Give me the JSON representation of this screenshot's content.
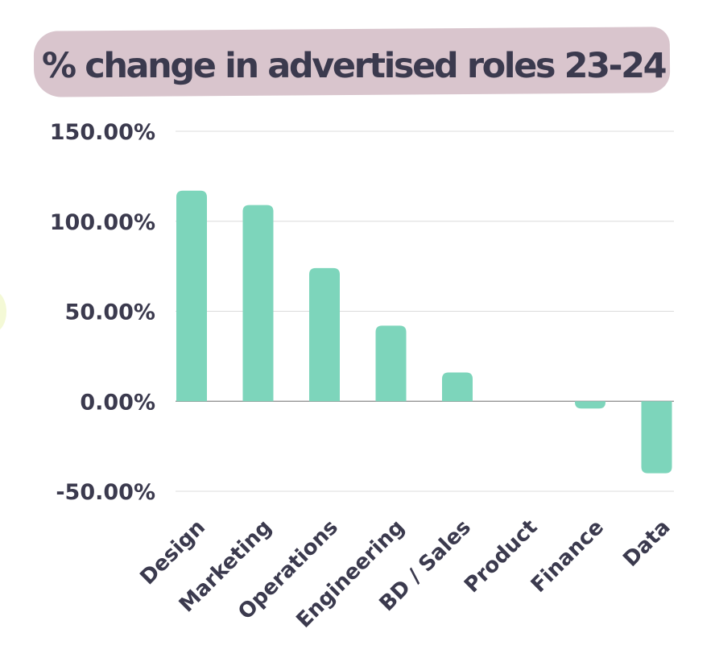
{
  "chart_data": {
    "type": "bar",
    "title": "% change in advertised roles 23-24",
    "xlabel": "",
    "ylabel": "",
    "categories": [
      "Design",
      "Marketing",
      "Operations",
      "Engineering",
      "BD / Sales",
      "Product",
      "Finance",
      "Data"
    ],
    "values": [
      117,
      109,
      74,
      42,
      16,
      0,
      -4,
      -40
    ],
    "ylim": [
      -50,
      150
    ],
    "yticks": [
      150,
      100,
      50,
      0,
      -50
    ],
    "ytick_labels": [
      "150.00%",
      "100.00%",
      "50.00%",
      "0.00%",
      "-50.00%"
    ],
    "grid": true,
    "legend": "none",
    "colors": {
      "bar": "#7dd5bb",
      "text": "#3b3a4e",
      "grid": "#dcdcdc",
      "title_highlight": "#d9c5cd"
    }
  }
}
